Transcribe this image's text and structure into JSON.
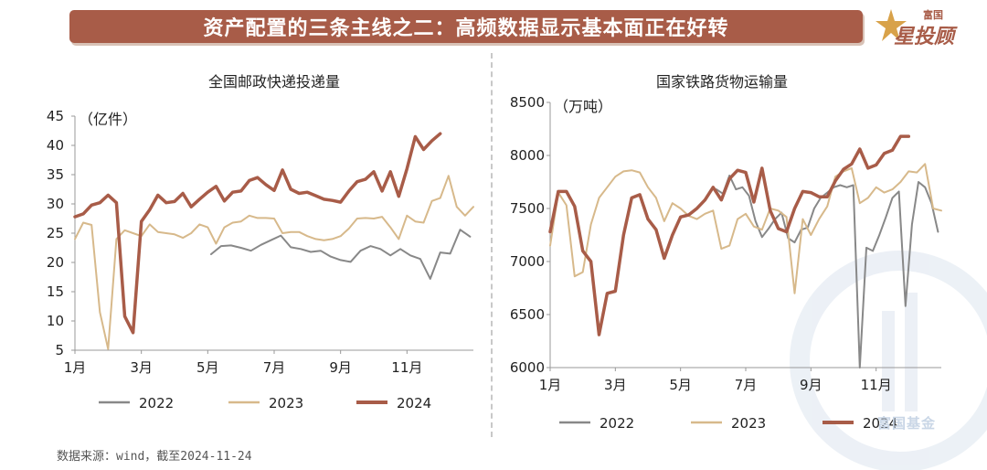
{
  "banner": {
    "title": "资产配置的三条主线之二：高频数据显示基本面正在好转"
  },
  "logo": {
    "small": "富国",
    "big": "星投顾"
  },
  "watermark": "富国基金",
  "source": "数据来源：wind，截至2024-11-24",
  "colors": {
    "y2022": "#888888",
    "y2023": "#d7b98b",
    "y2024": "#a85c48",
    "banner": "#a85c48"
  },
  "chart_data": [
    {
      "type": "line",
      "title": "全国邮政快递投递量",
      "unit": "（亿件）",
      "ylim": [
        5,
        45
      ],
      "yticks": [
        "5",
        "10",
        "15",
        "20",
        "25",
        "30",
        "35",
        "40",
        "45"
      ],
      "xticks": [
        "1月",
        "3月",
        "5月",
        "7月",
        "9月",
        "11月"
      ],
      "xlim": [
        1,
        13
      ],
      "legend_position": "bottom",
      "series": [
        {
          "name": "2022",
          "x": [
            5.1,
            5.4,
            5.7,
            6.0,
            6.3,
            6.6,
            6.9,
            7.2,
            7.5,
            7.8,
            8.1,
            8.4,
            8.7,
            9.0,
            9.3,
            9.6,
            9.9,
            10.2,
            10.5,
            10.8,
            11.1,
            11.4,
            11.7,
            12.0,
            12.3,
            12.6,
            12.9
          ],
          "values": [
            21.4,
            22.8,
            22.9,
            22.5,
            22.0,
            23.0,
            23.8,
            24.6,
            22.6,
            22.3,
            21.8,
            22.0,
            21.0,
            20.4,
            20.1,
            22.0,
            22.8,
            22.3,
            21.2,
            22.3,
            21.2,
            20.6,
            17.2,
            21.7,
            21.5,
            25.6,
            24.4
          ]
        },
        {
          "name": "2023",
          "x": [
            1.0,
            1.25,
            1.5,
            1.75,
            2.0,
            2.25,
            2.5,
            2.75,
            3.0,
            3.25,
            3.5,
            3.75,
            4.0,
            4.25,
            4.5,
            4.75,
            5.0,
            5.25,
            5.5,
            5.75,
            6.0,
            6.25,
            6.5,
            6.75,
            7.0,
            7.25,
            7.5,
            7.75,
            8.0,
            8.25,
            8.5,
            8.75,
            9.0,
            9.25,
            9.5,
            9.75,
            10.0,
            10.25,
            10.5,
            10.75,
            11.0,
            11.25,
            11.5,
            11.75,
            12.0,
            12.25,
            12.5,
            12.75,
            13.0
          ],
          "values": [
            24.0,
            26.8,
            26.4,
            11.5,
            5.2,
            24.0,
            25.5,
            25.0,
            24.5,
            26.5,
            25.2,
            25.0,
            24.8,
            24.2,
            25.0,
            26.5,
            26.0,
            23.2,
            26.0,
            26.8,
            27.0,
            28.0,
            27.6,
            27.6,
            27.5,
            25.0,
            25.2,
            25.2,
            24.5,
            24.0,
            23.8,
            24.0,
            24.5,
            25.8,
            27.5,
            27.6,
            27.5,
            27.8,
            26.0,
            24.0,
            28.0,
            27.0,
            26.8,
            30.5,
            31.0,
            34.8,
            29.5,
            28.0,
            29.5
          ]
        },
        {
          "name": "2024",
          "x": [
            1.0,
            1.25,
            1.5,
            1.75,
            2.0,
            2.25,
            2.5,
            2.75,
            3.0,
            3.25,
            3.5,
            3.75,
            4.0,
            4.25,
            4.5,
            4.75,
            5.0,
            5.25,
            5.5,
            5.75,
            6.0,
            6.25,
            6.5,
            6.75,
            7.0,
            7.25,
            7.5,
            7.75,
            8.0,
            8.25,
            8.5,
            8.75,
            9.0,
            9.25,
            9.5,
            9.75,
            10.0,
            10.25,
            10.5,
            10.75,
            11.0,
            11.25,
            11.5,
            11.75,
            12.0
          ],
          "values": [
            27.8,
            28.3,
            29.8,
            30.2,
            31.5,
            30.2,
            10.8,
            8.0,
            27.0,
            29.0,
            31.5,
            30.2,
            30.4,
            31.8,
            29.5,
            30.8,
            32.0,
            33.0,
            30.5,
            32.0,
            32.2,
            34.0,
            34.5,
            33.3,
            32.3,
            35.8,
            32.5,
            31.8,
            32.0,
            31.4,
            30.8,
            30.6,
            30.3,
            32.2,
            33.8,
            34.2,
            35.5,
            32.2,
            35.5,
            31.3,
            36.0,
            41.5,
            39.3,
            40.8,
            42.0
          ]
        }
      ]
    },
    {
      "type": "line",
      "title": "国家铁路货物运输量",
      "unit": "（万吨）",
      "ylim": [
        6000,
        8500
      ],
      "yticks": [
        "6000",
        "6500",
        "7000",
        "7500",
        "8000",
        "8500"
      ],
      "xticks": [
        "1月",
        "3月",
        "5月",
        "7月",
        "9月",
        "11月"
      ],
      "xlim": [
        1,
        13
      ],
      "legend_position": "bottom",
      "series": [
        {
          "name": "2022",
          "x": [
            6.1,
            6.3,
            6.5,
            6.7,
            6.9,
            7.1,
            7.3,
            7.5,
            7.7,
            7.9,
            8.1,
            8.3,
            8.5,
            8.7,
            8.9,
            9.1,
            9.3,
            9.5,
            9.7,
            9.9,
            10.1,
            10.3,
            10.5,
            10.7,
            10.9,
            11.1,
            11.3,
            11.5,
            11.7,
            11.9,
            12.1,
            12.3,
            12.5,
            12.7,
            12.9
          ],
          "values": [
            7680,
            7640,
            7810,
            7680,
            7700,
            7620,
            7380,
            7230,
            7310,
            7400,
            7460,
            7220,
            7180,
            7300,
            7320,
            7500,
            7600,
            7650,
            7700,
            7720,
            7700,
            7720,
            6000,
            7130,
            7100,
            7250,
            7420,
            7600,
            7660,
            6580,
            7350,
            7750,
            7700,
            7550,
            7280
          ]
        },
        {
          "name": "2023",
          "x": [
            1.0,
            1.25,
            1.5,
            1.75,
            2.0,
            2.25,
            2.5,
            2.75,
            3.0,
            3.25,
            3.5,
            3.75,
            4.0,
            4.25,
            4.5,
            4.75,
            5.0,
            5.25,
            5.5,
            5.75,
            6.0,
            6.25,
            6.5,
            6.75,
            7.0,
            7.25,
            7.5,
            7.75,
            8.0,
            8.25,
            8.5,
            8.75,
            9.0,
            9.25,
            9.5,
            9.75,
            10.0,
            10.25,
            10.5,
            10.75,
            11.0,
            11.25,
            11.5,
            11.75,
            12.0,
            12.25,
            12.5,
            12.75,
            13.0
          ],
          "values": [
            7150,
            7650,
            7530,
            6860,
            6900,
            7350,
            7600,
            7700,
            7800,
            7850,
            7860,
            7840,
            7700,
            7600,
            7380,
            7550,
            7500,
            7430,
            7400,
            7450,
            7480,
            7120,
            7150,
            7400,
            7450,
            7330,
            7300,
            7500,
            7480,
            7420,
            6700,
            7400,
            7250,
            7400,
            7520,
            7800,
            7850,
            7880,
            7550,
            7600,
            7700,
            7650,
            7680,
            7750,
            7850,
            7840,
            7920,
            7500,
            7480
          ]
        },
        {
          "name": "2024",
          "x": [
            1.0,
            1.25,
            1.5,
            1.75,
            2.0,
            2.25,
            2.5,
            2.75,
            3.0,
            3.25,
            3.5,
            3.75,
            4.0,
            4.25,
            4.5,
            4.75,
            5.0,
            5.25,
            5.5,
            5.75,
            6.0,
            6.25,
            6.5,
            6.75,
            7.0,
            7.25,
            7.5,
            7.75,
            8.0,
            8.25,
            8.5,
            8.75,
            9.0,
            9.25,
            9.5,
            9.75,
            10.0,
            10.25,
            10.5,
            10.75,
            11.0,
            11.25,
            11.5,
            11.75,
            12.0
          ],
          "values": [
            7280,
            7660,
            7660,
            7520,
            7100,
            7000,
            6310,
            6700,
            6720,
            7250,
            7600,
            7630,
            7400,
            7300,
            7030,
            7250,
            7420,
            7440,
            7500,
            7580,
            7700,
            7580,
            7780,
            7860,
            7840,
            7560,
            7880,
            7480,
            7310,
            7280,
            7500,
            7660,
            7650,
            7610,
            7610,
            7760,
            7870,
            7920,
            8060,
            7880,
            7910,
            8020,
            8050,
            8180,
            8180
          ]
        }
      ]
    }
  ]
}
